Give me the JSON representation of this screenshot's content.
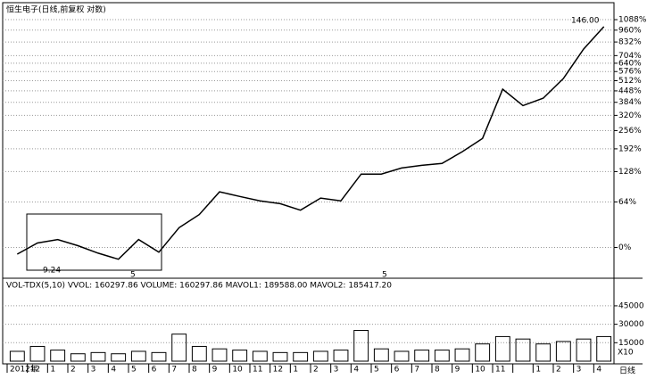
{
  "chart_data": {
    "type": "line",
    "title": "恒生电子(日线,前复权 对数)",
    "log_scale": true,
    "grid": true,
    "color": "#000000",
    "categories": [
      "2012年",
      "12",
      "1",
      "2",
      "3",
      "4",
      "5",
      "6",
      "7",
      "8",
      "9",
      "10",
      "11",
      "12",
      "1",
      "2",
      "3",
      "4",
      "5",
      "6",
      "7",
      "8",
      "9",
      "10",
      "11",
      null,
      "1",
      "2",
      "3",
      "4"
    ],
    "values": [
      -7,
      5,
      9,
      2,
      -6,
      -12,
      9,
      -5,
      24,
      43,
      83,
      74,
      66,
      61,
      50,
      71,
      66,
      122,
      122,
      137,
      144,
      149,
      183,
      227,
      458,
      367,
      406,
      527,
      763,
      1001
    ],
    "ylim": [
      -27,
      1235
    ],
    "yticks": [
      {
        "value": 1088,
        "label": "1088%"
      },
      {
        "value": 960,
        "label": "960%"
      },
      {
        "value": 832,
        "label": "832%"
      },
      {
        "value": 704,
        "label": "704%"
      },
      {
        "value": 640,
        "label": "640%"
      },
      {
        "value": 576,
        "label": "576%"
      },
      {
        "value": 512,
        "label": "512%"
      },
      {
        "value": 448,
        "label": "448%"
      },
      {
        "value": 384,
        "label": "384%"
      },
      {
        "value": 320,
        "label": "320%"
      },
      {
        "value": 256,
        "label": "256%"
      },
      {
        "value": 192,
        "label": "192%"
      },
      {
        "value": 128,
        "label": "128%"
      },
      {
        "value": 64,
        "label": "64%"
      },
      {
        "value": 0,
        "label": "0%"
      }
    ],
    "annotations": [
      "9.24",
      "146.00",
      "5",
      "5"
    ],
    "volume": {
      "title": "VOL-TDX(5,10) VVOL: 160297.86 VOLUME: 160297.86 MAVOL1: 189588.00 MAVOL2: 185417.20",
      "values": [
        8000,
        12000,
        9000,
        6000,
        7000,
        6000,
        8000,
        7000,
        22000,
        12000,
        10000,
        9000,
        8000,
        7000,
        7000,
        8000,
        9000,
        25000,
        10000,
        8000,
        9000,
        9000,
        10000,
        14000,
        20000,
        18000,
        14000,
        16000,
        18000,
        20000
      ],
      "ylim": [
        0,
        58000
      ],
      "yticks": [
        45000,
        30000,
        15000
      ],
      "unit": "X10"
    },
    "period": "日线"
  }
}
